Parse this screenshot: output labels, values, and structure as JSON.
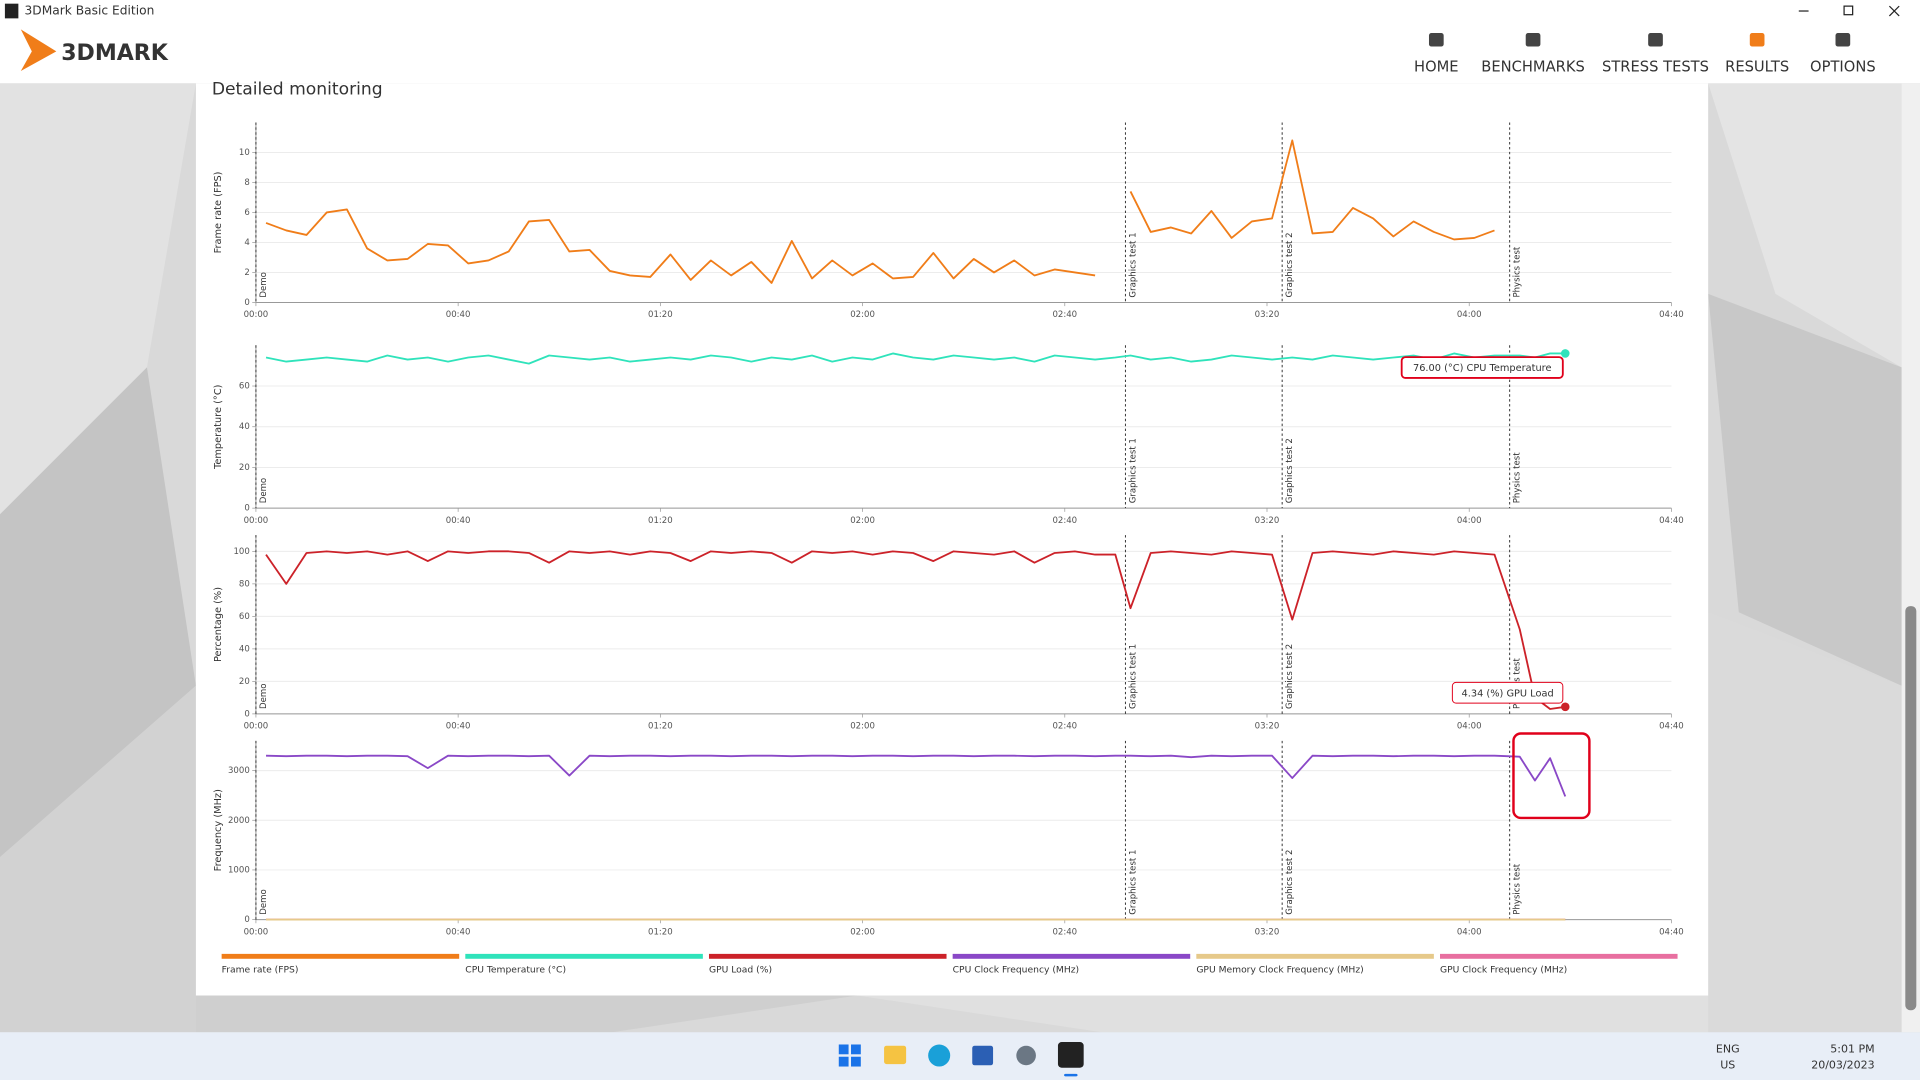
{
  "window": {
    "title": "3DMark Basic Edition"
  },
  "header": {
    "logo": "3DMARK",
    "nav": [
      {
        "label": "HOME",
        "active": false
      },
      {
        "label": "BENCHMARKS",
        "active": false
      },
      {
        "label": "STRESS TESTS",
        "active": false
      },
      {
        "label": "RESULTS",
        "active": true
      },
      {
        "label": "OPTIONS",
        "active": false
      }
    ]
  },
  "section_title": "Detailed monitoring",
  "test_markers": [
    {
      "label": "Demo",
      "x": 0
    },
    {
      "label": "Graphics test 1",
      "x": 172
    },
    {
      "label": "Graphics test 2",
      "x": 203
    },
    {
      "label": "Physics test",
      "x": 248
    }
  ],
  "chart_data": [
    {
      "type": "line",
      "y_label": "Frame rate (FPS)",
      "xlim": [
        0,
        280
      ],
      "xticks": [
        {
          "value": 0,
          "label": "00:00"
        },
        {
          "value": 40,
          "label": "00:40"
        },
        {
          "value": 80,
          "label": "01:20"
        },
        {
          "value": 120,
          "label": "02:00"
        },
        {
          "value": 160,
          "label": "02:40"
        },
        {
          "value": 200,
          "label": "03:20"
        },
        {
          "value": 240,
          "label": "04:00"
        },
        {
          "value": 280,
          "label": "04:40"
        }
      ],
      "ylim": [
        0,
        12
      ],
      "yticks": [
        0,
        2,
        4,
        6,
        8,
        10
      ],
      "grid": true,
      "x": [
        2,
        6,
        10,
        14,
        18,
        22,
        26,
        30,
        34,
        38,
        42,
        46,
        50,
        54,
        58,
        62,
        66,
        70,
        74,
        78,
        82,
        86,
        90,
        94,
        98,
        102,
        106,
        110,
        114,
        118,
        122,
        126,
        130,
        134,
        138,
        142,
        146,
        150,
        154,
        158,
        162,
        166,
        170,
        173,
        177,
        181,
        185,
        189,
        193,
        197,
        201,
        205,
        209,
        213,
        217,
        221,
        225,
        229,
        233,
        237,
        241,
        245,
        250,
        253,
        256,
        259
      ],
      "series": [
        {
          "name": "Frame rate (FPS)",
          "color": "#f07d19",
          "values": [
            5.3,
            4.8,
            4.5,
            6.0,
            6.2,
            3.6,
            2.8,
            2.9,
            3.9,
            3.8,
            2.6,
            2.8,
            3.4,
            5.4,
            5.5,
            3.4,
            3.5,
            2.1,
            1.8,
            1.7,
            3.2,
            1.5,
            2.8,
            1.8,
            2.7,
            1.3,
            4.1,
            1.6,
            2.8,
            1.8,
            2.6,
            1.6,
            1.7,
            3.3,
            1.6,
            2.9,
            2.0,
            2.8,
            1.8,
            2.2,
            2.0,
            1.8,
            null,
            7.4,
            4.7,
            5.0,
            4.6,
            6.1,
            4.3,
            5.4,
            5.6,
            10.8,
            4.6,
            4.7,
            6.3,
            5.6,
            4.4,
            5.4,
            4.7,
            4.2,
            4.3,
            4.8,
            null,
            null,
            null,
            null
          ]
        }
      ]
    },
    {
      "type": "line",
      "y_label": "Temperature (°C)",
      "xlim": [
        0,
        280
      ],
      "xticks": [
        {
          "value": 0,
          "label": "00:00"
        },
        {
          "value": 40,
          "label": "00:40"
        },
        {
          "value": 80,
          "label": "01:20"
        },
        {
          "value": 120,
          "label": "02:00"
        },
        {
          "value": 160,
          "label": "02:40"
        },
        {
          "value": 200,
          "label": "03:20"
        },
        {
          "value": 240,
          "label": "04:00"
        },
        {
          "value": 280,
          "label": "04:40"
        }
      ],
      "ylim": [
        0,
        80
      ],
      "yticks": [
        0,
        20,
        40,
        60
      ],
      "grid": true,
      "x": [
        2,
        6,
        10,
        14,
        18,
        22,
        26,
        30,
        34,
        38,
        42,
        46,
        50,
        54,
        58,
        62,
        66,
        70,
        74,
        78,
        82,
        86,
        90,
        94,
        98,
        102,
        106,
        110,
        114,
        118,
        122,
        126,
        130,
        134,
        138,
        142,
        146,
        150,
        154,
        158,
        162,
        166,
        170,
        173,
        177,
        181,
        185,
        189,
        193,
        197,
        201,
        205,
        209,
        213,
        217,
        221,
        225,
        229,
        233,
        237,
        241,
        245,
        250,
        253,
        256,
        259
      ],
      "series": [
        {
          "name": "CPU Temperature (°C)",
          "color": "#2fe3bb",
          "values": [
            74,
            72,
            73,
            74,
            73,
            72,
            75,
            73,
            74,
            72,
            74,
            75,
            73,
            71,
            75,
            74,
            73,
            74,
            72,
            73,
            74,
            73,
            75,
            74,
            72,
            74,
            73,
            75,
            72,
            74,
            73,
            76,
            74,
            73,
            75,
            74,
            73,
            74,
            72,
            75,
            74,
            73,
            74,
            75,
            73,
            74,
            72,
            73,
            75,
            74,
            73,
            74,
            73,
            75,
            74,
            73,
            74,
            75,
            73,
            76,
            74,
            75,
            75,
            74,
            76,
            76
          ]
        }
      ],
      "annotation": {
        "text": "76.00 (°C) CPU Temperature",
        "series": 0,
        "index": 65
      }
    },
    {
      "type": "line",
      "y_label": "Percentage (%)",
      "xlim": [
        0,
        280
      ],
      "xticks": [
        {
          "value": 0,
          "label": "00:00"
        },
        {
          "value": 40,
          "label": "00:40"
        },
        {
          "value": 80,
          "label": "01:20"
        },
        {
          "value": 120,
          "label": "02:00"
        },
        {
          "value": 160,
          "label": "02:40"
        },
        {
          "value": 200,
          "label": "03:20"
        },
        {
          "value": 240,
          "label": "04:00"
        },
        {
          "value": 280,
          "label": "04:40"
        }
      ],
      "ylim": [
        0,
        110
      ],
      "yticks": [
        0,
        20,
        40,
        60,
        80,
        100
      ],
      "grid": true,
      "x": [
        2,
        6,
        10,
        14,
        18,
        22,
        26,
        30,
        34,
        38,
        42,
        46,
        50,
        54,
        58,
        62,
        66,
        70,
        74,
        78,
        82,
        86,
        90,
        94,
        98,
        102,
        106,
        110,
        114,
        118,
        122,
        126,
        130,
        134,
        138,
        142,
        146,
        150,
        154,
        158,
        162,
        166,
        170,
        173,
        177,
        181,
        185,
        189,
        193,
        197,
        201,
        205,
        209,
        213,
        217,
        221,
        225,
        229,
        233,
        237,
        241,
        245,
        250,
        253,
        256,
        259
      ],
      "series": [
        {
          "name": "GPU Load (%)",
          "color": "#cc2229",
          "values": [
            98,
            80,
            99,
            100,
            99,
            100,
            98,
            100,
            94,
            100,
            99,
            100,
            100,
            99,
            93,
            100,
            99,
            100,
            98,
            100,
            99,
            94,
            100,
            99,
            100,
            99,
            93,
            100,
            99,
            100,
            98,
            100,
            99,
            94,
            100,
            99,
            98,
            100,
            93,
            99,
            100,
            98,
            98,
            65,
            99,
            100,
            99,
            98,
            100,
            99,
            98,
            58,
            99,
            100,
            99,
            98,
            100,
            99,
            98,
            100,
            99,
            98,
            52,
            10,
            3,
            4.34
          ]
        }
      ],
      "annotation": {
        "text": "4.34 (%) GPU Load",
        "series": 0,
        "index": 65
      }
    },
    {
      "type": "line",
      "y_label": "Frequency (MHz)",
      "xlim": [
        0,
        280
      ],
      "xticks": [
        {
          "value": 0,
          "label": "00:00"
        },
        {
          "value": 40,
          "label": "00:40"
        },
        {
          "value": 80,
          "label": "01:20"
        },
        {
          "value": 120,
          "label": "02:00"
        },
        {
          "value": 160,
          "label": "02:40"
        },
        {
          "value": 200,
          "label": "03:20"
        },
        {
          "value": 240,
          "label": "04:00"
        },
        {
          "value": 280,
          "label": "04:40"
        }
      ],
      "ylim": [
        0,
        3600
      ],
      "yticks": [
        0,
        1000,
        2000,
        3000
      ],
      "grid": true,
      "x": [
        2,
        6,
        10,
        14,
        18,
        22,
        26,
        30,
        34,
        38,
        42,
        46,
        50,
        54,
        58,
        62,
        66,
        70,
        74,
        78,
        82,
        86,
        90,
        94,
        98,
        102,
        106,
        110,
        114,
        118,
        122,
        126,
        130,
        134,
        138,
        142,
        146,
        150,
        154,
        158,
        162,
        166,
        170,
        173,
        177,
        181,
        185,
        189,
        193,
        197,
        201,
        205,
        209,
        213,
        217,
        221,
        225,
        229,
        233,
        237,
        241,
        245,
        250,
        253,
        256,
        259
      ],
      "series": [
        {
          "name": "CPU Clock Frequency (MHz)",
          "color": "#8a48c7",
          "values": [
            3300,
            3290,
            3300,
            3300,
            3290,
            3300,
            3300,
            3290,
            3050,
            3300,
            3290,
            3300,
            3300,
            3290,
            3300,
            2900,
            3300,
            3290,
            3300,
            3300,
            3290,
            3300,
            3300,
            3290,
            3300,
            3300,
            3290,
            3300,
            3300,
            3290,
            3300,
            3300,
            3290,
            3300,
            3300,
            3290,
            3300,
            3300,
            3290,
            3300,
            3300,
            3290,
            3300,
            3300,
            3290,
            3300,
            3270,
            3300,
            3290,
            3300,
            3300,
            2850,
            3300,
            3290,
            3300,
            3300,
            3290,
            3300,
            3300,
            3290,
            3300,
            3300,
            3280,
            2800,
            3250,
            2480
          ]
        },
        {
          "name": "GPU Memory Clock Frequency (MHz)",
          "color": "#e6c98a",
          "values": [
            0,
            0,
            0,
            0,
            0,
            0,
            0,
            0,
            0,
            0,
            0,
            0,
            0,
            0,
            0,
            0,
            0,
            0,
            0,
            0,
            0,
            0,
            0,
            0,
            0,
            0,
            0,
            0,
            0,
            0,
            0,
            0,
            0,
            0,
            0,
            0,
            0,
            0,
            0,
            0,
            0,
            0,
            0,
            0,
            0,
            0,
            0,
            0,
            0,
            0,
            0,
            0,
            0,
            0,
            0,
            0,
            0,
            0,
            0,
            0,
            0,
            0,
            0,
            0,
            0,
            0
          ]
        },
        {
          "name": "GPU Clock Frequency (MHz)",
          "color": "#e86fa0",
          "values": [
            0,
            0,
            0,
            0,
            0,
            0,
            0,
            0,
            0,
            0,
            0,
            0,
            0,
            0,
            0,
            0,
            0,
            0,
            0,
            0,
            0,
            0,
            0,
            0,
            0,
            0,
            0,
            0,
            0,
            0,
            0,
            0,
            0,
            0,
            0,
            0,
            0,
            0,
            0,
            0,
            0,
            0,
            0,
            0,
            0,
            0,
            0,
            0,
            0,
            0,
            0,
            0,
            0,
            0,
            0,
            0,
            0,
            0,
            0,
            0,
            0,
            0,
            0,
            0,
            0,
            0
          ]
        }
      ]
    }
  ],
  "taskbar": {
    "language": "ENG",
    "region": "US",
    "time": "5:01 PM",
    "date": "20/03/2023"
  }
}
